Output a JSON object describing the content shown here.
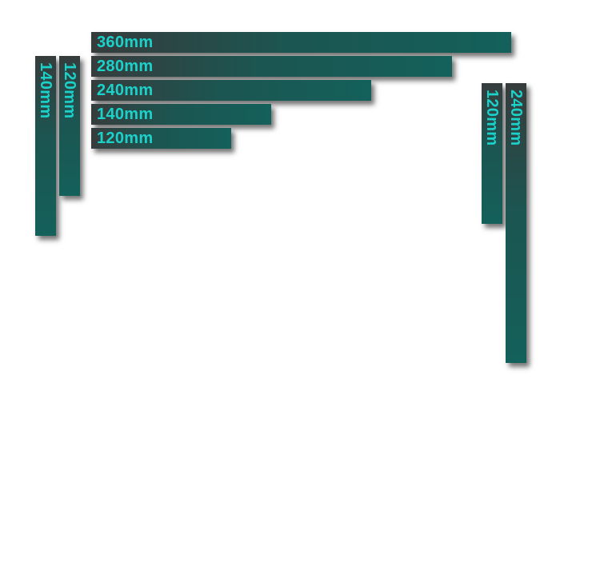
{
  "rails": {
    "top_horizontal": [
      {
        "label": "360mm"
      },
      {
        "label": "280mm"
      },
      {
        "label": "240mm"
      },
      {
        "label": "140mm"
      },
      {
        "label": "120mm"
      }
    ],
    "left_vertical": [
      {
        "label": "140mm"
      },
      {
        "label": "120mm"
      }
    ],
    "right_vertical": [
      {
        "label": "120mm"
      },
      {
        "label": "240mm"
      }
    ]
  },
  "colors": {
    "bar_dark": "#363c3c",
    "bar_teal": "#14605a",
    "label": "#1bd2cb",
    "background": "#ffffff"
  }
}
